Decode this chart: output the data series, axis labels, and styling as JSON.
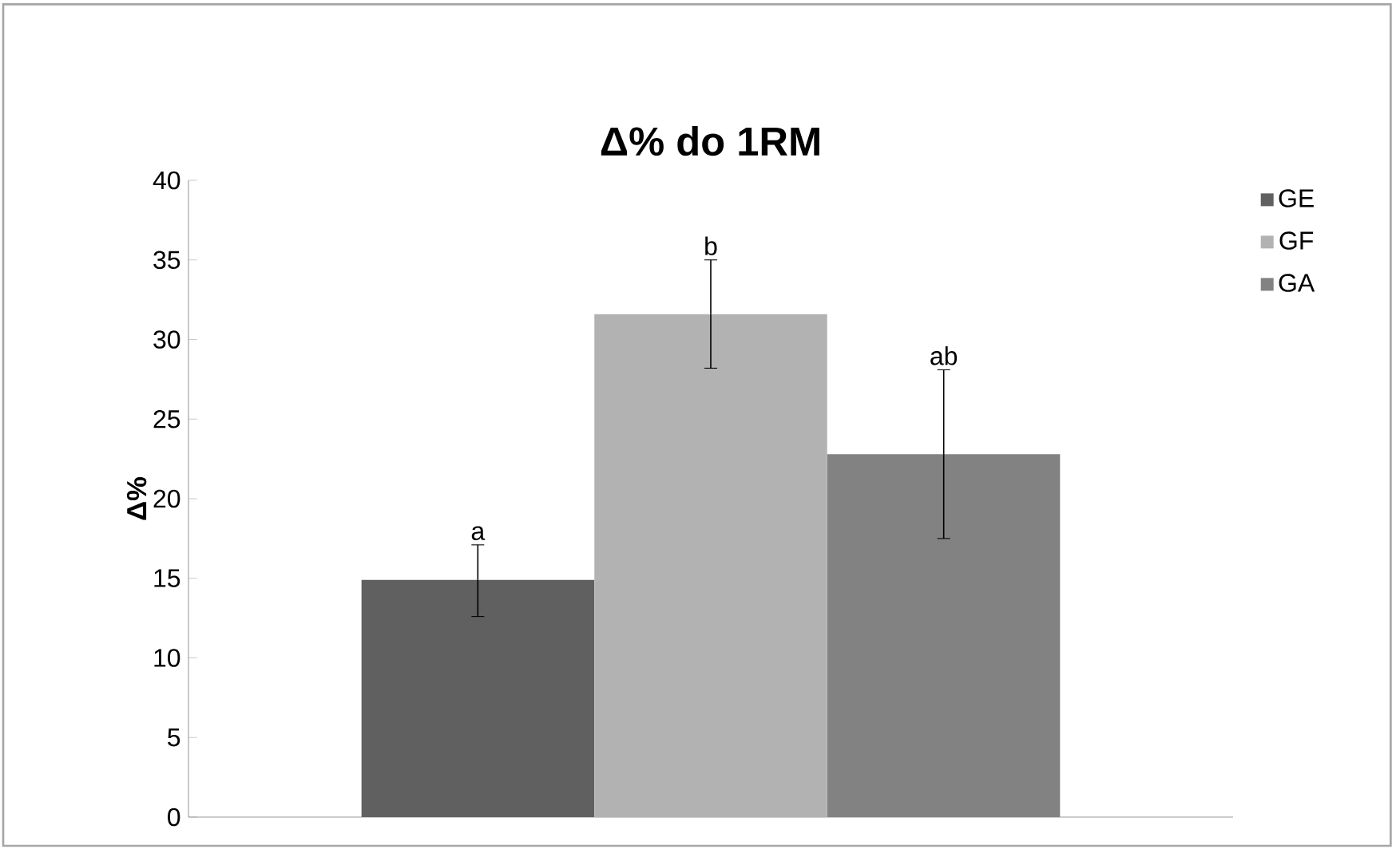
{
  "chart_data": {
    "type": "bar",
    "title": "Δ% do 1RM",
    "ylabel": "Δ%",
    "categories": [
      null
    ],
    "series": [
      {
        "name": "GE",
        "color": "#606060",
        "values": [
          14.9
        ],
        "errors": [
          [
            12.6,
            17.1
          ]
        ]
      },
      {
        "name": "GF",
        "color": "#b2b2b2",
        "values": [
          31.6
        ],
        "errors": [
          [
            28.2,
            35.0
          ]
        ]
      },
      {
        "name": "GA",
        "color": "#828282",
        "values": [
          22.8
        ],
        "errors": [
          [
            17.5,
            28.1
          ]
        ]
      }
    ],
    "annotations": [
      "a",
      "b",
      "ab"
    ],
    "ylim": [
      0,
      40
    ],
    "yticks": [
      0,
      5,
      10,
      15,
      20,
      25,
      30,
      35,
      40
    ],
    "grid": false,
    "legend": "right"
  }
}
